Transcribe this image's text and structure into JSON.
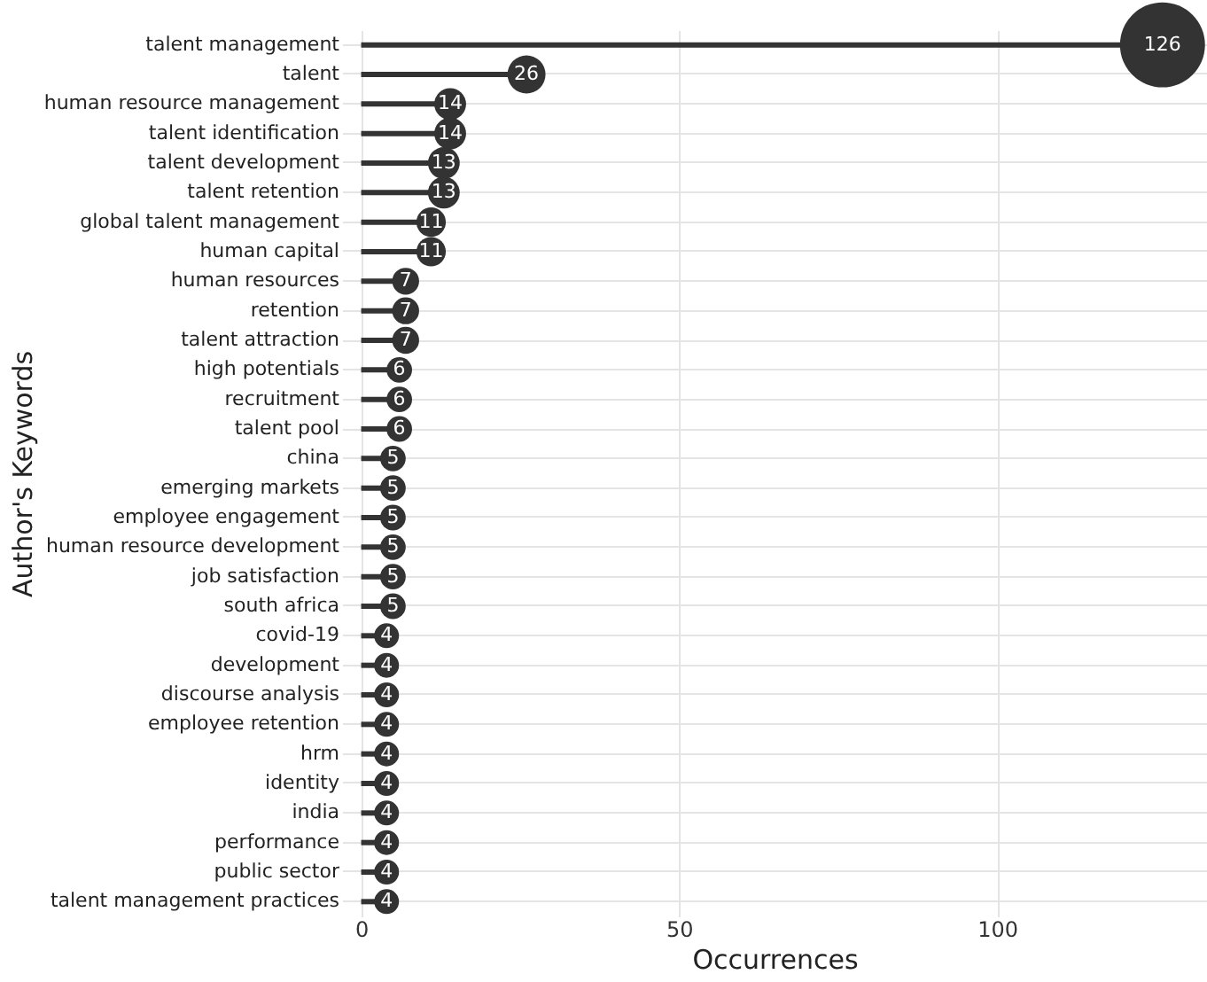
{
  "chart_data": {
    "type": "lollipop",
    "orientation": "horizontal",
    "xlabel": "Occurrences",
    "ylabel": "Author's Keywords",
    "categories": [
      "talent management",
      "talent",
      "human resource management",
      "talent identification",
      "talent development",
      "talent retention",
      "global talent management",
      "human capital",
      "human resources",
      "retention",
      "talent attraction",
      "high potentials",
      "recruitment",
      "talent pool",
      "china",
      "emerging markets",
      "employee engagement",
      "human resource development",
      "job satisfaction",
      "south africa",
      "covid-19",
      "development",
      "discourse analysis",
      "employee retention",
      "hrm",
      "identity",
      "india",
      "performance",
      "public sector",
      "talent management practices"
    ],
    "values": [
      126,
      26,
      14,
      14,
      13,
      13,
      11,
      11,
      7,
      7,
      7,
      6,
      6,
      6,
      5,
      5,
      5,
      5,
      5,
      5,
      4,
      4,
      4,
      4,
      4,
      4,
      4,
      4,
      4,
      4
    ],
    "sizes": [
      1,
      0.2,
      0.14,
      0.14,
      0.14,
      0.14,
      0.12,
      0.12,
      0.1,
      0.1,
      0.1,
      0.09,
      0.09,
      0.09,
      0.09,
      0.09,
      0.09,
      0.09,
      0.09,
      0.09,
      0.085,
      0.085,
      0.085,
      0.085,
      0.085,
      0.085,
      0.085,
      0.085,
      0.085,
      0.085
    ],
    "color": "#333333",
    "xlim": [
      -3,
      133
    ],
    "xticks": [
      0,
      50,
      100
    ],
    "grid": true,
    "data_labels": true,
    "legend": false
  }
}
